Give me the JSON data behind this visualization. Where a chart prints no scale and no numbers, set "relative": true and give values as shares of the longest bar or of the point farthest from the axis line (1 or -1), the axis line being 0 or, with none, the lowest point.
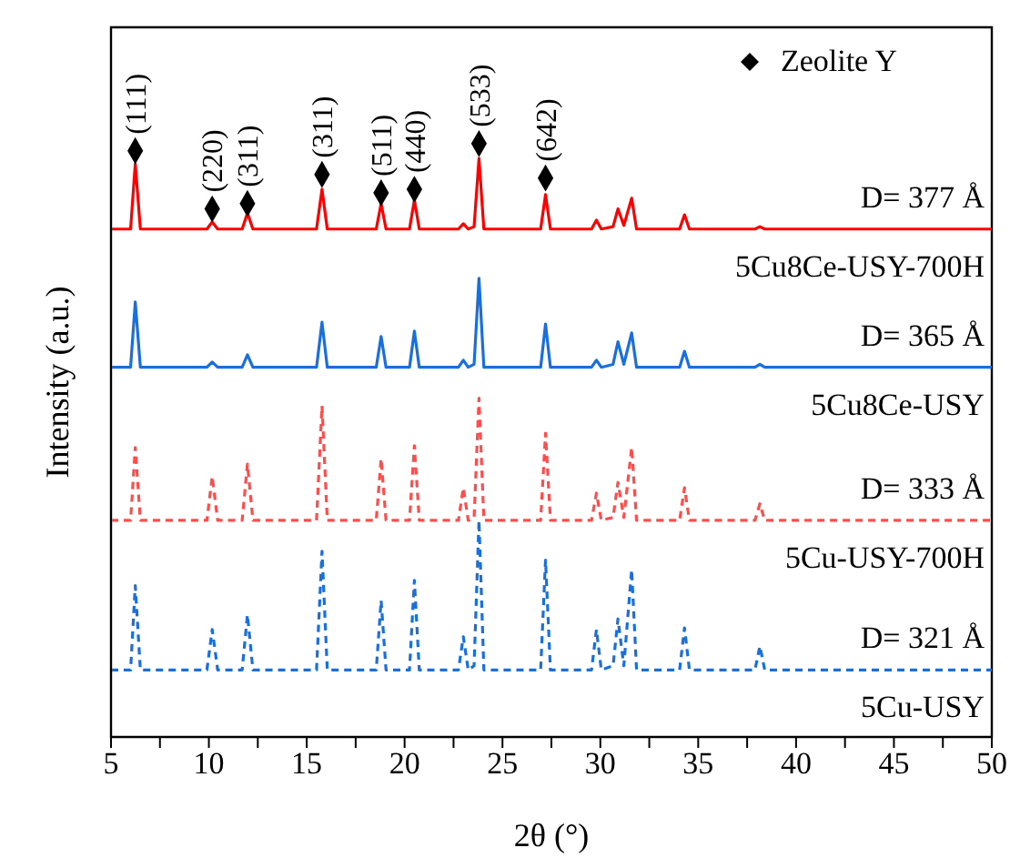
{
  "chart_data": {
    "type": "line",
    "xlabel": "2θ (°)",
    "ylabel": "Intensity (a.u.)",
    "relative": true,
    "xlim": [
      5,
      50
    ],
    "xticks": [
      5,
      {
        "value": 7.5,
        "label": null
      },
      10,
      {
        "value": 12.5,
        "label": null
      },
      15,
      {
        "value": 17.5,
        "label": null
      },
      20,
      {
        "value": 22.5,
        "label": null
      },
      25,
      {
        "value": 27.5,
        "label": null
      },
      30,
      {
        "value": 32.5,
        "label": null
      },
      35,
      {
        "value": 37.5,
        "label": null
      },
      40,
      {
        "value": 42.5,
        "label": null
      },
      45,
      {
        "value": 47.5,
        "label": null
      },
      50
    ],
    "x": [
      5,
      6.0,
      6.24,
      6.5,
      9.9,
      10.17,
      10.45,
      11.7,
      11.97,
      12.25,
      15.5,
      15.78,
      16.05,
      18.55,
      18.8,
      19.05,
      20.25,
      20.5,
      20.75,
      22.75,
      23.0,
      23.25,
      23.55,
      23.8,
      24.05,
      26.95,
      27.2,
      27.45,
      29.55,
      29.8,
      30.05,
      30.65,
      30.9,
      31.2,
      31.6,
      31.85,
      34.05,
      34.3,
      34.55,
      37.9,
      38.15,
      38.4,
      50
    ],
    "legend": "top right",
    "series": [
      {
        "color": "#ff0000",
        "line_style": "solid",
        "values": [
          0.856,
          0.856,
          0.966,
          0.856,
          0.856,
          0.868,
          0.856,
          0.856,
          0.883,
          0.856,
          0.856,
          0.923,
          0.856,
          0.856,
          0.899,
          0.856,
          0.856,
          0.905,
          0.856,
          0.856,
          0.865,
          0.856,
          0.86,
          0.975,
          0.856,
          0.856,
          0.914,
          0.856,
          0.856,
          0.871,
          0.856,
          0.86,
          0.89,
          0.862,
          0.908,
          0.856,
          0.856,
          0.88,
          0.856,
          0.856,
          0.86,
          0.856,
          0.856
        ]
      },
      {
        "color": "#1a6fdf",
        "line_style": "solid",
        "values": [
          0.623,
          0.623,
          0.733,
          0.623,
          0.623,
          0.632,
          0.623,
          0.623,
          0.644,
          0.623,
          0.623,
          0.699,
          0.623,
          0.623,
          0.675,
          0.623,
          0.623,
          0.684,
          0.623,
          0.623,
          0.635,
          0.623,
          0.628,
          0.773,
          0.623,
          0.623,
          0.696,
          0.623,
          0.623,
          0.635,
          0.623,
          0.628,
          0.666,
          0.628,
          0.681,
          0.623,
          0.623,
          0.65,
          0.623,
          0.623,
          0.628,
          0.623,
          0.623
        ]
      },
      {
        "color": "#ff4d4d",
        "line_style": "dashed",
        "values": [
          0.365,
          0.365,
          0.488,
          0.365,
          0.365,
          0.439,
          0.365,
          0.365,
          0.46,
          0.365,
          0.365,
          0.558,
          0.365,
          0.365,
          0.469,
          0.365,
          0.365,
          0.491,
          0.365,
          0.365,
          0.42,
          0.365,
          0.37,
          0.571,
          0.365,
          0.365,
          0.512,
          0.365,
          0.365,
          0.411,
          0.365,
          0.37,
          0.429,
          0.37,
          0.488,
          0.365,
          0.365,
          0.42,
          0.365,
          0.365,
          0.393,
          0.365,
          0.365
        ]
      },
      {
        "color": "#1a6fdf",
        "line_style": "dashed",
        "values": [
          0.113,
          0.113,
          0.255,
          0.113,
          0.113,
          0.181,
          0.113,
          0.113,
          0.206,
          0.113,
          0.113,
          0.313,
          0.113,
          0.113,
          0.23,
          0.113,
          0.113,
          0.264,
          0.113,
          0.113,
          0.169,
          0.113,
          0.12,
          0.365,
          0.113,
          0.113,
          0.298,
          0.113,
          0.113,
          0.181,
          0.113,
          0.12,
          0.199,
          0.12,
          0.282,
          0.113,
          0.113,
          0.184,
          0.113,
          0.113,
          0.153,
          0.113,
          0.113
        ]
      },
      {
        "type": "scatter",
        "name": "Zeolite Y",
        "color": "#000000",
        "marker": "diamond",
        "x": [
          6.24,
          10.17,
          11.97,
          15.78,
          18.8,
          20.5,
          23.8,
          27.2
        ],
        "values": [
          0.988,
          0.89,
          0.899,
          0.948,
          0.917,
          0.923,
          1.0,
          0.942
        ]
      }
    ],
    "annotations": [
      {
        "text": "(111)",
        "x": 6.24,
        "y": 0.988
      },
      {
        "text": "(220)",
        "x": 10.17,
        "y": 0.89
      },
      {
        "text": "(311)",
        "x": 11.97,
        "y": 0.899
      },
      {
        "text": "(311)",
        "x": 15.78,
        "y": 0.948
      },
      {
        "text": "(511)",
        "x": 18.8,
        "y": 0.917
      },
      {
        "text": "(440)",
        "x": 20.5,
        "y": 0.923
      },
      {
        "text": "(533)",
        "x": 23.8,
        "y": 1.0
      },
      {
        "text": "(642)",
        "x": 27.2,
        "y": 0.942
      },
      "D= 377 Å",
      "5Cu8Ce-USY-700H",
      "D= 365 Å",
      "5Cu8Ce-USY",
      "D= 333 Å",
      "5Cu-USY-700H",
      "D= 321 Å",
      "5Cu-USY"
    ]
  }
}
